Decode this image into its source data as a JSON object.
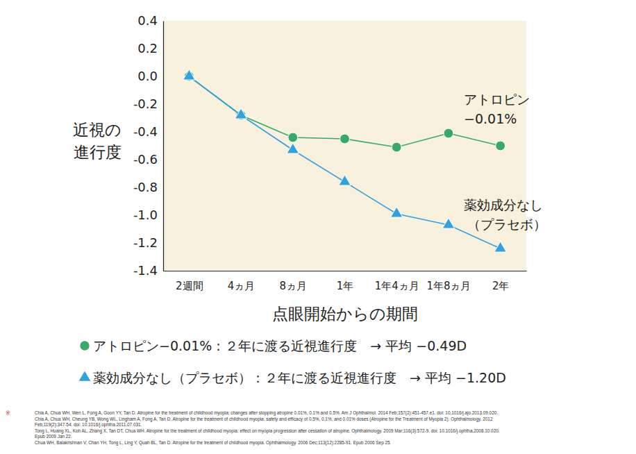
{
  "chart_data": {
    "type": "line",
    "y_label": [
      "近視の",
      "進行度"
    ],
    "x_label": "点眼開始からの期間",
    "categories": [
      "2週間",
      "4ヵ月",
      "8ヵ月",
      "1年",
      "1年4ヵ月",
      "1年8ヵ月",
      "2年"
    ],
    "series": [
      {
        "name": "アトロピン−0.01%",
        "color": "#3aa86b",
        "marker": "circle",
        "line_style": "solid",
        "values": [
          0.0,
          -0.28,
          -0.44,
          -0.45,
          -0.51,
          -0.41,
          -0.5
        ],
        "summary": "：２年に渡る近視進行度　→ 平均 −0.49D"
      },
      {
        "name": "薬効成分なし（プラセボ）",
        "color": "#35a0dc",
        "marker": "triangle",
        "line_style": "solid",
        "values": [
          0.0,
          -0.28,
          -0.53,
          -0.76,
          -0.99,
          -1.07,
          -1.24
        ],
        "summary": "：２年に渡る近視進行度　→ 平均 −1.20D"
      }
    ],
    "annotations": [
      [
        "アトロピン",
        "−0.01%"
      ],
      [
        "薬効成分なし",
        "（プラセボ）"
      ]
    ],
    "ylim": [
      -1.4,
      0.4
    ],
    "yticks": [
      {
        "value": -1.4,
        "label": "-1.4"
      },
      {
        "value": -1.2,
        "label": "-1.2"
      },
      {
        "value": -1,
        "label": "-1.0"
      },
      {
        "value": -0.8,
        "label": "-0.8"
      },
      {
        "value": -0.6,
        "label": "-0.6"
      },
      {
        "value": -0.4,
        "label": "-0.4"
      },
      {
        "value": -0.2,
        "label": "-0.2"
      },
      {
        "value": 0,
        "label": "0.0"
      },
      {
        "value": 0.2,
        "label": "0.2"
      },
      {
        "value": 0.4,
        "label": "0.4"
      }
    ],
    "grid": false,
    "footnote_mark": "※",
    "references": [
      "Chia A, Chua WH, Wen L, Fong A, Goon YY, Tan D. Atropine for the treatment of childhood myopia: changes after stopping atropine 0.01%, 0.1% and 0.5%. Am J Ophthalmol. 2014 Feb;157(2):451-457.e1. doi: 10.1016/j.ajo.2013.09.020.",
      "Chia A, Chua WH, Cheung YB, Wong WL, Lingham A, Fong A, Tan D. Atropine for the treatment of childhood myopia: safety and efficacy of 0.5%, 0.1%, and 0.01% doses (Atropine for the Treatment of Myopia 2). Ophthalmology. 2012",
      "Feb;119(2):347-54. doi: 10.1016/j.ophtha.2011.07.031.",
      "Tong L, Huang XL, Koh AL, Zhang X, Tan DT, Chua WH. Atropine for the treatment of childhood myopia: effect on myopia progression after cessation of atropine. Ophthalmology. 2009 Mar;116(3):572-9. doi: 10.1016/j.ophtha.2008.10.020.",
      "Epub 2009 Jan 22.",
      "Chua WH, Balakrishnan V, Chan YH, Tong L, Ling Y, Quah BL, Tan D. Atropine for the treatment of childhood myopia. Ophthalmology. 2006 Dec;113(12):2285-91. Epub 2006 Sep 25."
    ]
  }
}
